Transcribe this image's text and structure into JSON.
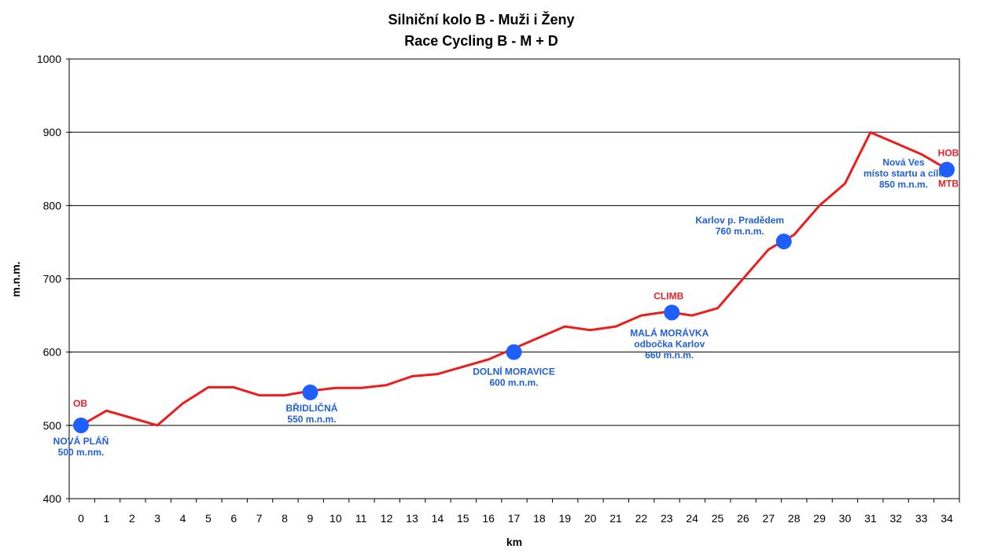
{
  "chart_data": {
    "type": "line",
    "title": "Silniční kolo B - Muži i Ženy",
    "subtitle": "Race Cycling B - M + D",
    "xlabel": "km",
    "ylabel": "m.n.m.",
    "xlim": [
      0,
      34
    ],
    "ylim": [
      400,
      1000
    ],
    "x_ticks": [
      "0",
      "1",
      "2",
      "3",
      "4",
      "5",
      "6",
      "7",
      "8",
      "9",
      "10",
      "11",
      "12",
      "13",
      "14",
      "15",
      "16",
      "17",
      "18",
      "19",
      "20",
      "21",
      "22",
      "23",
      "24",
      "25",
      "26",
      "27",
      "28",
      "29",
      "30",
      "31",
      "32",
      "33",
      "34"
    ],
    "y_ticks": [
      "400",
      "500",
      "600",
      "700",
      "800",
      "900",
      "1000"
    ],
    "grid": true,
    "line_color": "#ee1c1c",
    "marker_color": "#1f5fff",
    "label_blue": "#1f5fd8",
    "label_red": "#e8202a",
    "series": [
      {
        "x": [
          0,
          1,
          2,
          3,
          4,
          5,
          6,
          7,
          8,
          9,
          10,
          11,
          12,
          13,
          14,
          15,
          16,
          17,
          18,
          19,
          20,
          21,
          22,
          23,
          24,
          25,
          26,
          27,
          28,
          29,
          30,
          31,
          32,
          33,
          34
        ],
        "y": [
          500,
          520,
          510,
          500,
          530,
          552,
          552,
          541,
          541,
          547,
          551,
          551,
          555,
          567,
          570,
          580,
          590,
          605,
          620,
          635,
          630,
          635,
          650,
          655,
          650,
          660,
          700,
          740,
          760,
          800,
          830,
          900,
          885,
          870,
          850
        ]
      }
    ],
    "points": [
      {
        "x": 0,
        "y": 500,
        "label": [
          "NOVÁ PLÁŇ",
          "500 m.nm."
        ],
        "tag": "OB"
      },
      {
        "x": 9,
        "y": 545,
        "label": [
          "BŘIDLIČNÁ",
          "550 m.n.m."
        ],
        "tag": ""
      },
      {
        "x": 17,
        "y": 600,
        "label": [
          "DOLNÍ MORAVICE",
          "600 m.n.m."
        ],
        "tag": ""
      },
      {
        "x": 23.2,
        "y": 654,
        "label": [
          "MALÁ MORÁVKA",
          "odbočka Karlov",
          "660 m.n.m."
        ],
        "tag": "CLIMB"
      },
      {
        "x": 27.6,
        "y": 751,
        "label": [
          "Karlov p. Pradědem",
          "760 m.n.m."
        ],
        "tag": ""
      },
      {
        "x": 34,
        "y": 849,
        "label": [
          "Nová Ves",
          "místo startu a cíle",
          "850 m.n.m."
        ],
        "tag": "HOB",
        "tag2": "MTB"
      }
    ]
  }
}
